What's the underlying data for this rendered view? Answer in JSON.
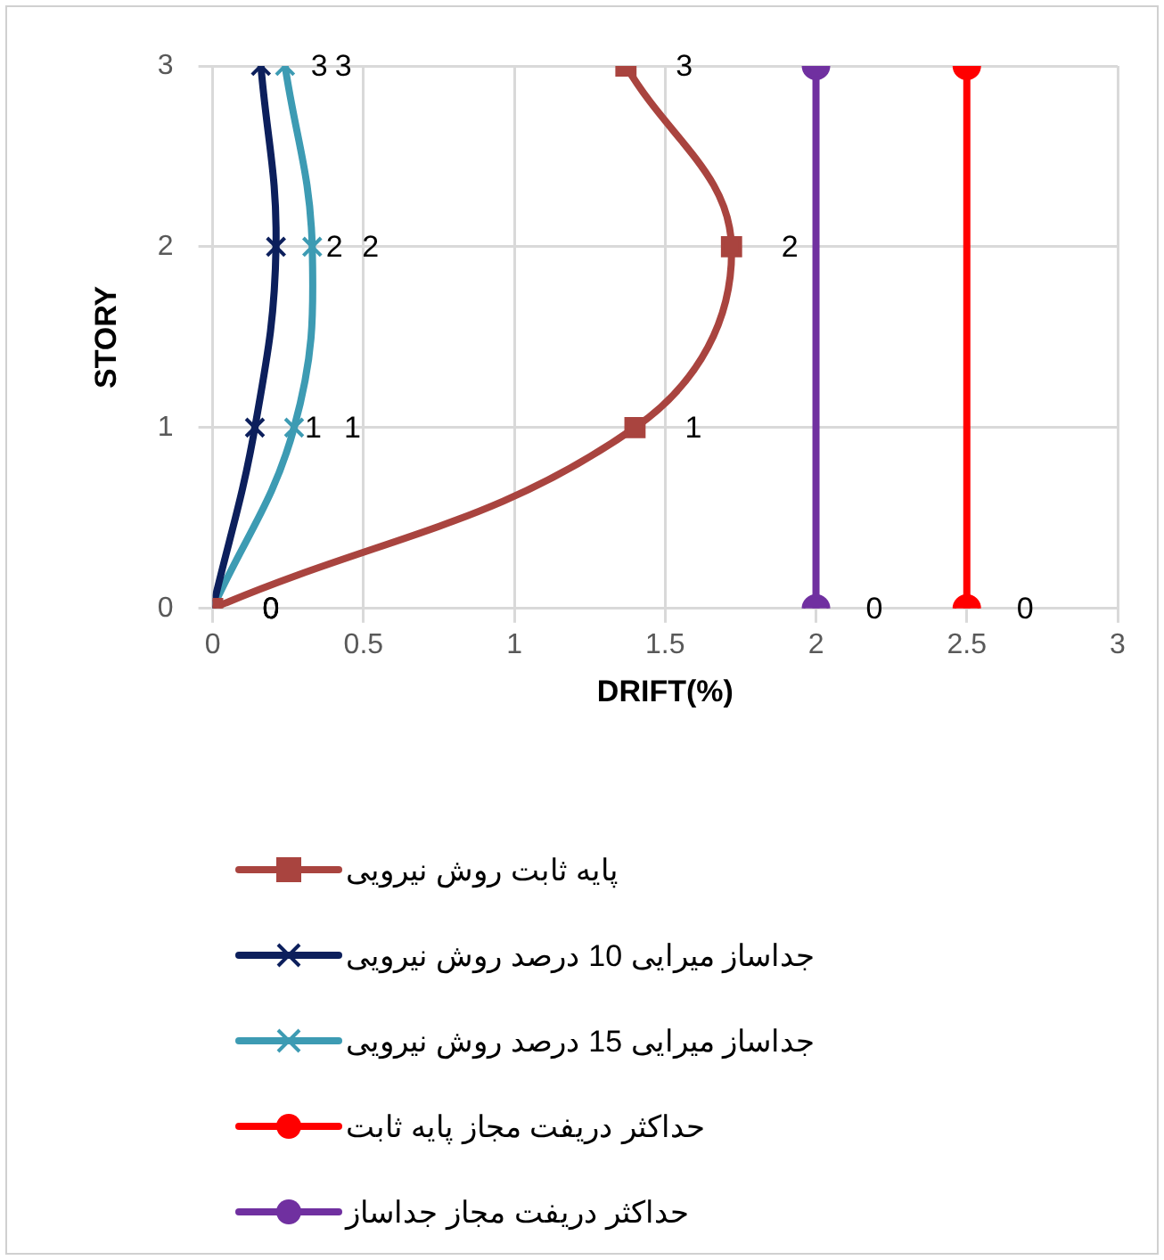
{
  "chart_data": {
    "type": "line",
    "xlabel": "DRIFT(%)",
    "ylabel": "STORY",
    "xlim": [
      0,
      3
    ],
    "xticks": [
      0,
      0.5,
      1,
      1.5,
      2,
      2.5,
      3
    ],
    "ylim": [
      0,
      3
    ],
    "yticks": [
      0,
      1,
      2,
      3
    ],
    "grid": true,
    "legend": "bottom",
    "line_style": "solid",
    "series": [
      {
        "name": "پایه ثابت روش نیرویی",
        "color": "#a9443f",
        "marker": "square",
        "x": [
          0,
          1.4,
          1.72,
          1.37
        ],
        "values": [
          0,
          1,
          2,
          3
        ],
        "value_labels": [
          "0",
          "1",
          "2",
          "3"
        ]
      },
      {
        "name": "جداساز میرایی 10 درصد روش نیرویی",
        "color": "#0c1f5c",
        "marker": "cross",
        "x": [
          0,
          0.14,
          0.21,
          0.16
        ],
        "values": [
          0,
          1,
          2,
          3
        ],
        "value_labels": [
          "0",
          "1",
          "2",
          "3"
        ]
      },
      {
        "name": "جداساز میرایی 15 درصد روش نیرویی",
        "color": "#3d9bb3",
        "marker": "cross",
        "x": [
          0,
          0.27,
          0.33,
          0.24
        ],
        "values": [
          0,
          1,
          2,
          3
        ],
        "value_labels": [
          "0",
          "1",
          "2",
          "3"
        ]
      },
      {
        "name": "حداکثر دریفت مجاز پایه ثابت",
        "color": "#ff0000",
        "marker": "circle",
        "x": [
          2.5,
          2.5
        ],
        "values": [
          0,
          3
        ],
        "value_labels": [
          "0",
          null
        ]
      },
      {
        "name": "حداکثر دریفت مجاز جداساز",
        "color": "#7030a0",
        "marker": "circle",
        "x": [
          2,
          2
        ],
        "values": [
          0,
          3
        ],
        "value_labels": [
          "0",
          null
        ]
      }
    ]
  }
}
